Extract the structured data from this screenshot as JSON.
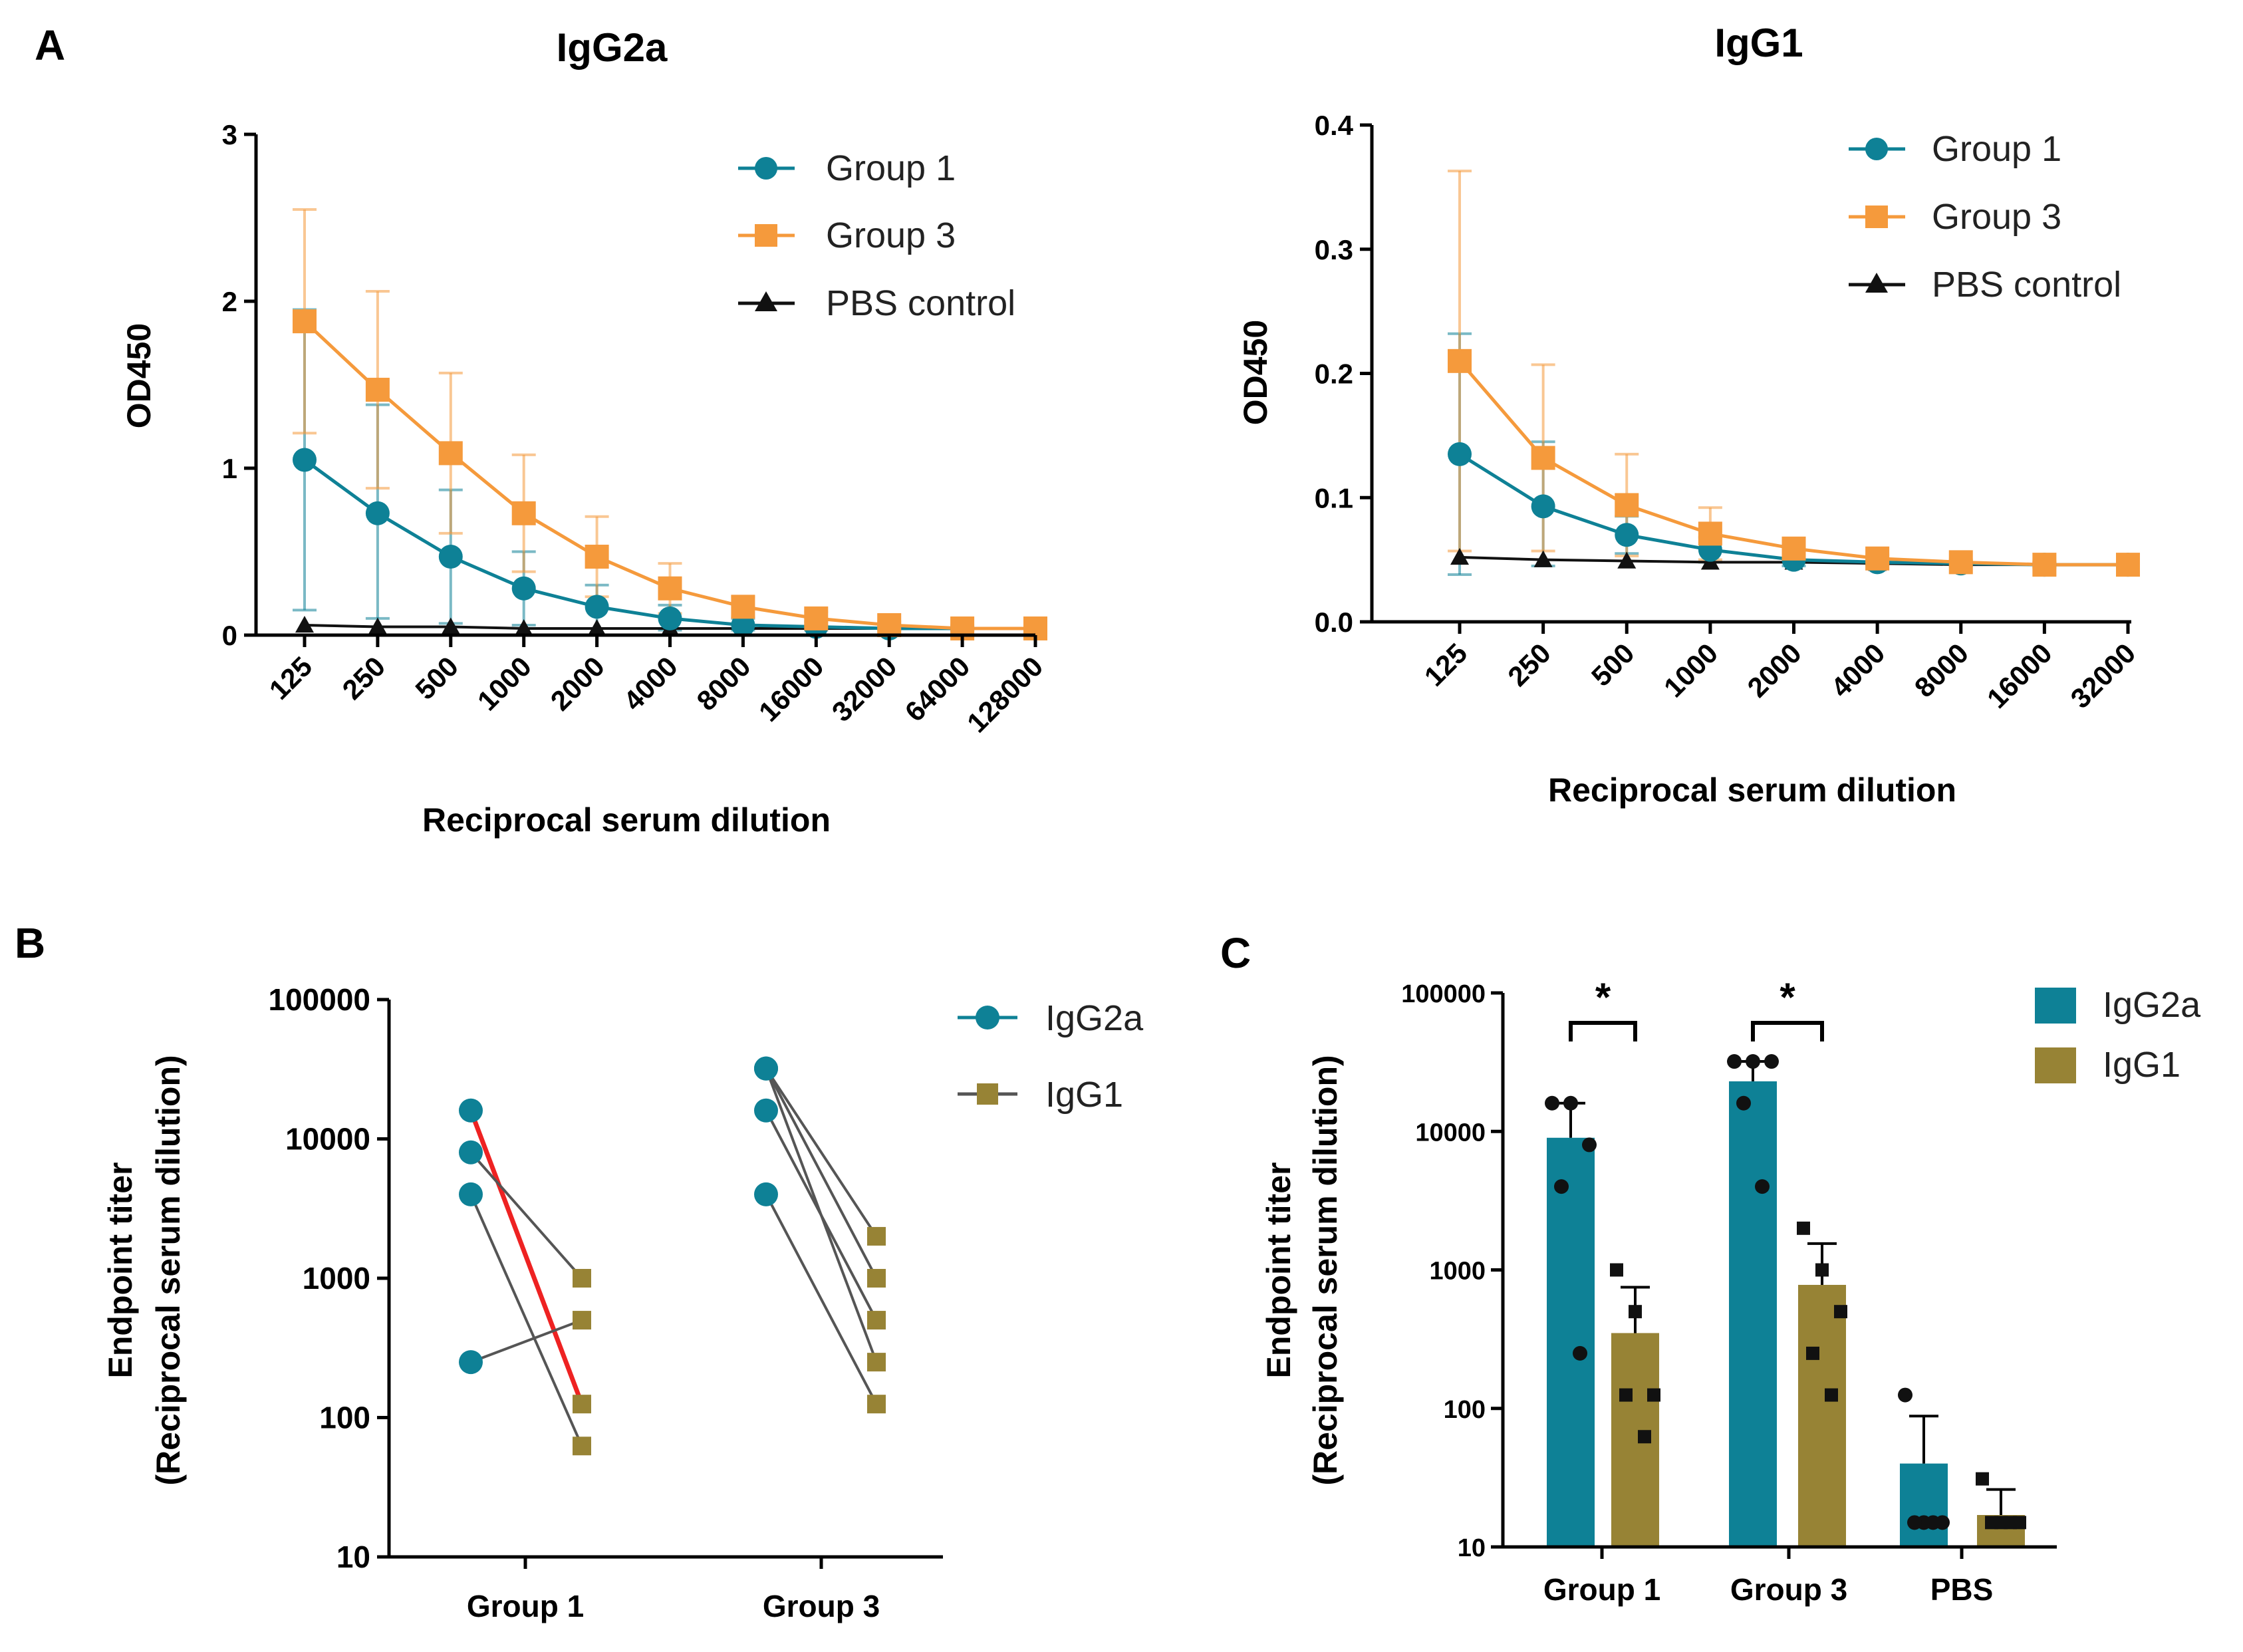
{
  "colors": {
    "group1": "#0E8196",
    "group3": "#F59A3C",
    "pbs": "#111111",
    "igg2a": "#0E8196",
    "igg1": "#978335",
    "highlight_line": "#EE2222",
    "pair_line": "#555555"
  },
  "panel_letters": {
    "a": "A",
    "b": "B",
    "c": "C"
  },
  "chart_data": [
    {
      "id": "A-left",
      "type": "line",
      "title": "IgG2a",
      "xlabel": "Reciprocal serum dilution",
      "ylabel": "OD450",
      "ylim": [
        0,
        3
      ],
      "yticks": [
        "0",
        "1",
        "2",
        "3"
      ],
      "ytick_values": [
        0,
        1,
        2,
        3
      ],
      "categories": [
        "125",
        "250",
        "500",
        "1000",
        "2000",
        "4000",
        "8000",
        "16000",
        "32000",
        "64000",
        "128000"
      ],
      "legend": [
        "Group 1",
        "Group 3",
        "PBS control"
      ],
      "legend_position": "top-right",
      "series": [
        {
          "name": "Group 1",
          "marker": "circle",
          "color_key": "group1",
          "values": [
            1.05,
            0.73,
            0.47,
            0.28,
            0.17,
            0.1,
            0.06,
            0.05,
            0.04,
            0.04,
            0.04
          ],
          "err_upper": [
            1.95,
            1.38,
            0.87,
            0.5,
            0.3,
            0.18,
            0.1,
            0.08,
            0.06,
            0.05,
            0.05
          ],
          "err_lower": [
            0.15,
            0.1,
            0.07,
            0.06,
            0.04,
            0.03,
            0.03,
            0.03,
            0.03,
            0.03,
            0.03
          ]
        },
        {
          "name": "Group 3",
          "marker": "square",
          "color_key": "group3",
          "values": [
            1.88,
            1.47,
            1.09,
            0.73,
            0.47,
            0.28,
            0.17,
            0.1,
            0.06,
            0.04,
            0.04
          ],
          "err_upper": [
            2.55,
            2.06,
            1.57,
            1.08,
            0.71,
            0.43,
            0.23,
            0.14,
            0.08,
            0.06,
            0.05
          ],
          "err_lower": [
            1.21,
            0.88,
            0.61,
            0.38,
            0.23,
            0.13,
            0.11,
            0.06,
            0.04,
            0.03,
            0.03
          ]
        },
        {
          "name": "PBS control",
          "marker": "triangle",
          "color_key": "pbs",
          "values": [
            0.06,
            0.05,
            0.05,
            0.04,
            0.04,
            0.04,
            0.04,
            0.04,
            0.04,
            0.04,
            0.04
          ]
        }
      ]
    },
    {
      "id": "A-right",
      "type": "line",
      "title": "IgG1",
      "xlabel": "Reciprocal serum dilution",
      "ylabel": "OD450",
      "ylim": [
        0,
        0.4
      ],
      "yticks": [
        "0.0",
        "0.1",
        "0.2",
        "0.3",
        "0.4"
      ],
      "ytick_values": [
        0,
        0.1,
        0.2,
        0.3,
        0.4
      ],
      "categories": [
        "125",
        "250",
        "500",
        "1000",
        "2000",
        "4000",
        "8000",
        "16000",
        "32000"
      ],
      "legend": [
        "Group 1",
        "Group 3",
        "PBS control"
      ],
      "legend_position": "top-right",
      "series": [
        {
          "name": "Group 1",
          "marker": "circle",
          "color_key": "group1",
          "values": [
            0.135,
            0.093,
            0.07,
            0.058,
            0.05,
            0.048,
            0.047,
            0.046,
            0.046
          ],
          "err_upper": [
            0.232,
            0.145,
            0.085,
            0.068,
            0.055,
            0.05,
            0.049,
            0.048,
            0.047
          ],
          "err_lower": [
            0.038,
            0.045,
            0.055,
            0.048,
            0.045,
            0.046,
            0.045,
            0.044,
            0.045
          ]
        },
        {
          "name": "Group 3",
          "marker": "square",
          "color_key": "group3",
          "values": [
            0.21,
            0.132,
            0.094,
            0.071,
            0.059,
            0.051,
            0.048,
            0.046,
            0.046
          ],
          "err_upper": [
            0.363,
            0.207,
            0.135,
            0.092,
            0.064,
            0.054,
            0.05,
            0.048,
            0.047
          ],
          "err_lower": [
            0.057,
            0.057,
            0.053,
            0.05,
            0.054,
            0.048,
            0.046,
            0.044,
            0.045
          ]
        },
        {
          "name": "PBS control",
          "marker": "triangle",
          "color_key": "pbs",
          "values": [
            0.052,
            0.05,
            0.049,
            0.048,
            0.048,
            0.047,
            0.046,
            0.046,
            0.046
          ]
        }
      ]
    },
    {
      "id": "B",
      "type": "scatter",
      "subtype": "paired",
      "ylabel_line1": "Endpoint titer",
      "ylabel_line2": "(Reciprocal serum dilution)",
      "yscale": "log",
      "ylim": [
        10,
        100000
      ],
      "yticks": [
        "10",
        "100",
        "1000",
        "10000",
        "100000"
      ],
      "ytick_values": [
        10,
        100,
        1000,
        10000,
        100000
      ],
      "groups": [
        "Group 1",
        "Group 3"
      ],
      "legend": [
        "IgG2a",
        "IgG1"
      ],
      "legend_position": "top-right",
      "pairs": [
        {
          "group": "Group 1",
          "igg2a": 16000,
          "igg1": 125,
          "highlight": true
        },
        {
          "group": "Group 1",
          "igg2a": 8000,
          "igg1": 1000,
          "highlight": false
        },
        {
          "group": "Group 1",
          "igg2a": 4000,
          "igg1": 62.5,
          "highlight": false
        },
        {
          "group": "Group 1",
          "igg2a": 250,
          "igg1": 500,
          "highlight": false
        },
        {
          "group": "Group 3",
          "igg2a": 32000,
          "igg1": 2000,
          "highlight": false
        },
        {
          "group": "Group 3",
          "igg2a": 32000,
          "igg1": 1000,
          "highlight": false
        },
        {
          "group": "Group 3",
          "igg2a": 32000,
          "igg1": 250,
          "highlight": false
        },
        {
          "group": "Group 3",
          "igg2a": 16000,
          "igg1": 500,
          "highlight": false
        },
        {
          "group": "Group 3",
          "igg2a": 4000,
          "igg1": 125,
          "highlight": false
        }
      ]
    },
    {
      "id": "C",
      "type": "bar",
      "ylabel_line1": "Endpoint titer",
      "ylabel_line2": "(Reciprocal serum dilution)",
      "yscale": "log",
      "ylim": [
        10,
        100000
      ],
      "yticks": [
        "10",
        "100",
        "1000",
        "10000",
        "100000"
      ],
      "ytick_values": [
        10,
        100,
        1000,
        10000,
        100000
      ],
      "categories": [
        "Group 1",
        "Group 3",
        "PBS"
      ],
      "legend": [
        "IgG2a",
        "IgG1"
      ],
      "legend_position": "top-right",
      "series": [
        {
          "name": "IgG2a",
          "color_key": "igg2a",
          "marker": "circle",
          "values": [
            9000,
            23000,
            40
          ],
          "err_upper": [
            16000,
            32000,
            88
          ],
          "points": [
            [
              16000,
              16000,
              8000,
              4000,
              250
            ],
            [
              32000,
              32000,
              32000,
              16000,
              4000
            ],
            [
              125,
              15,
              15,
              15,
              15
            ]
          ]
        },
        {
          "name": "IgG1",
          "color_key": "igg1",
          "marker": "square",
          "values": [
            350,
            780,
            17
          ],
          "err_upper": [
            750,
            1550,
            26
          ],
          "points": [
            [
              1000,
              500,
              125,
              125,
              62.5
            ],
            [
              2000,
              1000,
              500,
              250,
              125
            ],
            [
              31,
              15,
              15,
              15,
              15
            ]
          ]
        }
      ],
      "significance": [
        {
          "category": "Group 1",
          "label": "*"
        },
        {
          "category": "Group 3",
          "label": "*"
        }
      ]
    }
  ]
}
